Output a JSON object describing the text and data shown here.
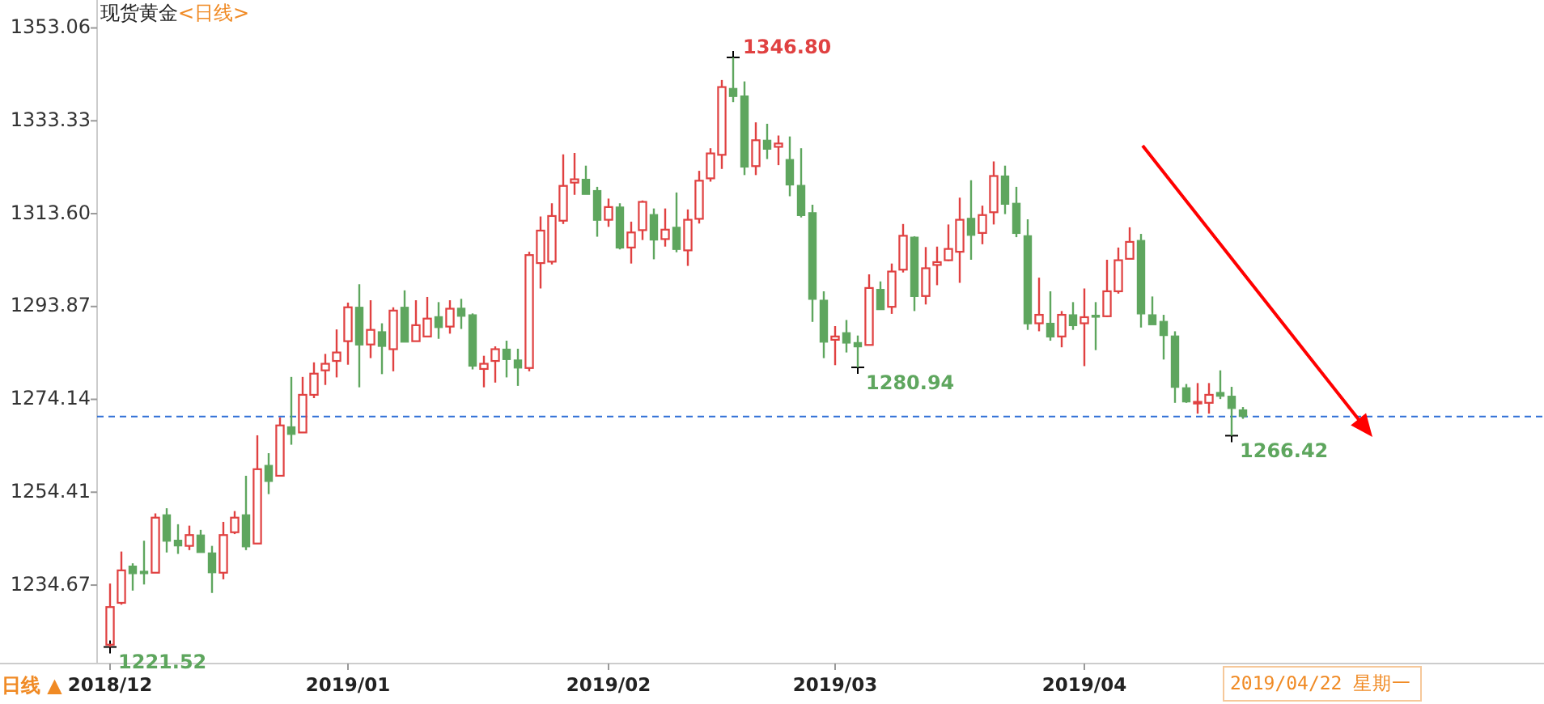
{
  "chart_data": {
    "type": "candlestick",
    "title": "现货黄金",
    "subtitle": "<日线>",
    "categories": [
      "2018/12",
      null,
      null,
      null,
      null,
      null,
      null,
      null,
      null,
      null,
      null,
      null,
      null,
      null,
      null,
      null,
      null,
      null,
      null,
      null,
      null,
      "2019/01",
      null,
      null,
      null,
      null,
      null,
      null,
      null,
      null,
      null,
      null,
      null,
      null,
      null,
      null,
      null,
      null,
      null,
      null,
      null,
      null,
      null,
      null,
      "2019/02",
      null,
      null,
      null,
      null,
      null,
      null,
      null,
      null,
      null,
      null,
      null,
      null,
      null,
      null,
      null,
      null,
      null,
      null,
      null,
      "2019/03",
      null,
      null,
      null,
      null,
      null,
      null,
      null,
      null,
      null,
      null,
      null,
      null,
      null,
      null,
      null,
      null,
      null,
      null,
      null,
      null,
      null,
      "2019/04",
      null,
      null,
      null,
      null,
      null,
      null,
      null,
      null,
      null,
      null,
      null,
      null,
      null,
      null
    ],
    "ohlc": [
      [
        1222.0,
        1235.0,
        1221.52,
        1230.0
      ],
      [
        1230.9,
        1241.8,
        1230.5,
        1237.8
      ],
      [
        1238.7,
        1239.3,
        1233.5,
        1237.1
      ],
      [
        1237.6,
        1244.1,
        1234.8,
        1237.1
      ],
      [
        1237.3,
        1249.9,
        1237.3,
        1249.0
      ],
      [
        1249.6,
        1251.0,
        1241.6,
        1244.0
      ],
      [
        1244.2,
        1247.6,
        1241.3,
        1243.0
      ],
      [
        1243.0,
        1247.3,
        1242.1,
        1245.3
      ],
      [
        1245.3,
        1246.4,
        1241.6,
        1241.6
      ],
      [
        1241.5,
        1243.0,
        1233.0,
        1237.3
      ],
      [
        1237.3,
        1248.1,
        1235.9,
        1245.3
      ],
      [
        1245.9,
        1250.4,
        1245.5,
        1249.0
      ],
      [
        1249.6,
        1257.9,
        1242.1,
        1242.8
      ],
      [
        1243.5,
        1266.5,
        1243.5,
        1259.3
      ],
      [
        1260.1,
        1262.7,
        1254.0,
        1256.7
      ],
      [
        1257.9,
        1270.3,
        1257.9,
        1268.6
      ],
      [
        1268.3,
        1278.9,
        1264.5,
        1266.7
      ],
      [
        1267.1,
        1278.9,
        1267.1,
        1275.1
      ],
      [
        1275.1,
        1282.0,
        1274.4,
        1279.6
      ],
      [
        1280.3,
        1283.8,
        1277.2,
        1281.7
      ],
      [
        1282.3,
        1289.0,
        1278.8,
        1284.1
      ],
      [
        1286.5,
        1294.7,
        1281.5,
        1293.7
      ],
      [
        1293.7,
        1298.6,
        1276.7,
        1285.7
      ],
      [
        1285.8,
        1295.2,
        1282.9,
        1288.9
      ],
      [
        1288.5,
        1290.3,
        1279.5,
        1285.4
      ],
      [
        1284.8,
        1293.7,
        1280.1,
        1293.0
      ],
      [
        1293.7,
        1297.3,
        1286.3,
        1286.3
      ],
      [
        1286.5,
        1295.2,
        1286.5,
        1289.9
      ],
      [
        1287.5,
        1295.9,
        1287.5,
        1291.3
      ],
      [
        1291.7,
        1294.8,
        1287.0,
        1289.4
      ],
      [
        1289.6,
        1295.2,
        1288.1,
        1293.4
      ],
      [
        1293.5,
        1295.5,
        1289.1,
        1291.8
      ],
      [
        1292.1,
        1292.4,
        1280.5,
        1281.2
      ],
      [
        1280.6,
        1283.4,
        1276.7,
        1281.7
      ],
      [
        1282.3,
        1285.4,
        1277.7,
        1284.8
      ],
      [
        1284.8,
        1286.6,
        1278.8,
        1282.6
      ],
      [
        1282.5,
        1284.9,
        1277.0,
        1280.8
      ],
      [
        1280.8,
        1305.5,
        1280.1,
        1304.8
      ],
      [
        1303.1,
        1313.0,
        1297.7,
        1310.0
      ],
      [
        1303.4,
        1315.8,
        1302.8,
        1313.1
      ],
      [
        1312.1,
        1326.2,
        1311.4,
        1319.5
      ],
      [
        1320.2,
        1326.5,
        1317.6,
        1320.9
      ],
      [
        1320.9,
        1323.8,
        1317.7,
        1317.7
      ],
      [
        1318.5,
        1319.3,
        1308.7,
        1312.2
      ],
      [
        1312.3,
        1316.8,
        1310.8,
        1315.0
      ],
      [
        1315.0,
        1315.8,
        1306.0,
        1306.3
      ],
      [
        1306.4,
        1311.9,
        1303.0,
        1309.6
      ],
      [
        1310.1,
        1316.4,
        1308.0,
        1316.1
      ],
      [
        1313.4,
        1314.7,
        1303.9,
        1308.0
      ],
      [
        1308.2,
        1314.7,
        1306.6,
        1310.2
      ],
      [
        1310.7,
        1318.1,
        1305.4,
        1306.0
      ],
      [
        1305.8,
        1314.5,
        1302.5,
        1312.3
      ],
      [
        1312.5,
        1322.7,
        1311.5,
        1320.6
      ],
      [
        1321.1,
        1327.5,
        1320.4,
        1326.4
      ],
      [
        1326.1,
        1342.0,
        1323.1,
        1340.5
      ],
      [
        1340.2,
        1346.8,
        1337.3,
        1338.5
      ],
      [
        1338.6,
        1341.7,
        1321.8,
        1323.5
      ],
      [
        1323.7,
        1333.0,
        1321.8,
        1329.2
      ],
      [
        1329.2,
        1332.7,
        1325.2,
        1327.3
      ],
      [
        1327.8,
        1330.2,
        1323.9,
        1328.5
      ],
      [
        1325.1,
        1330.0,
        1317.3,
        1319.7
      ],
      [
        1319.6,
        1327.5,
        1312.8,
        1313.2
      ],
      [
        1313.8,
        1315.5,
        1290.6,
        1295.4
      ],
      [
        1295.2,
        1297.1,
        1282.9,
        1286.3
      ],
      [
        1286.8,
        1289.7,
        1281.4,
        1287.5
      ],
      [
        1288.3,
        1291.0,
        1284.1,
        1286.1
      ],
      [
        1286.2,
        1287.7,
        1280.94,
        1285.3
      ],
      [
        1285.7,
        1300.7,
        1285.7,
        1297.8
      ],
      [
        1297.5,
        1299.2,
        1293.2,
        1293.2
      ],
      [
        1293.8,
        1303.0,
        1292.3,
        1301.3
      ],
      [
        1301.7,
        1311.4,
        1301.1,
        1308.9
      ],
      [
        1308.6,
        1308.8,
        1292.9,
        1296.0
      ],
      [
        1296.1,
        1306.5,
        1294.3,
        1302.0
      ],
      [
        1302.7,
        1306.6,
        1298.4,
        1303.3
      ],
      [
        1303.7,
        1311.3,
        1303.5,
        1306.1
      ],
      [
        1305.5,
        1317.0,
        1298.9,
        1312.3
      ],
      [
        1312.6,
        1320.7,
        1303.8,
        1309.0
      ],
      [
        1309.5,
        1315.3,
        1307.1,
        1313.3
      ],
      [
        1313.9,
        1324.7,
        1311.3,
        1321.6
      ],
      [
        1321.6,
        1323.8,
        1313.5,
        1315.6
      ],
      [
        1315.8,
        1319.3,
        1308.6,
        1309.4
      ],
      [
        1308.9,
        1312.4,
        1288.9,
        1290.2
      ],
      [
        1290.3,
        1300.0,
        1288.6,
        1292.1
      ],
      [
        1290.3,
        1297.1,
        1286.6,
        1287.4
      ],
      [
        1287.5,
        1292.9,
        1285.2,
        1292.1
      ],
      [
        1292.1,
        1294.8,
        1288.9,
        1289.8
      ],
      [
        1290.3,
        1297.7,
        1281.2,
        1291.6
      ],
      [
        1292.0,
        1294.8,
        1284.6,
        1291.6
      ],
      [
        1291.8,
        1303.8,
        1291.6,
        1297.1
      ],
      [
        1297.1,
        1306.4,
        1296.6,
        1303.7
      ],
      [
        1304.0,
        1310.7,
        1304.0,
        1307.6
      ],
      [
        1307.9,
        1309.3,
        1289.4,
        1292.3
      ],
      [
        1292.1,
        1296.0,
        1290.0,
        1290.0
      ],
      [
        1290.7,
        1292.1,
        1282.6,
        1287.7
      ],
      [
        1287.6,
        1288.6,
        1273.4,
        1276.7
      ],
      [
        1276.6,
        1277.4,
        1273.4,
        1273.6
      ],
      [
        1273.3,
        1277.6,
        1271.1,
        1273.6
      ],
      [
        1273.4,
        1277.6,
        1271.1,
        1275.1
      ],
      [
        1275.6,
        1280.3,
        1274.2,
        1274.8
      ],
      [
        1274.8,
        1276.8,
        1266.42,
        1272.2
      ],
      [
        1271.9,
        1272.5,
        1270.0,
        1270.5
      ]
    ],
    "colors": [
      "#e04141",
      "#e04141",
      "#5ea65e",
      "#5ea65e",
      "#e04141",
      "#5ea65e",
      "#5ea65e",
      "#e04141",
      "#5ea65e",
      "#5ea65e",
      "#e04141",
      "#e04141",
      "#5ea65e",
      "#e04141",
      "#5ea65e",
      "#e04141",
      "#5ea65e",
      "#e04141",
      "#e04141",
      "#e04141",
      "#e04141",
      "#e04141",
      "#5ea65e",
      "#e04141",
      "#5ea65e",
      "#e04141",
      "#5ea65e",
      "#e04141",
      "#e04141",
      "#5ea65e",
      "#e04141",
      "#5ea65e",
      "#5ea65e",
      "#e04141",
      "#e04141",
      "#5ea65e",
      "#5ea65e",
      "#e04141",
      "#e04141",
      "#e04141",
      "#e04141",
      "#e04141",
      "#5ea65e",
      "#5ea65e",
      "#e04141",
      "#5ea65e",
      "#e04141",
      "#e04141",
      "#5ea65e",
      "#e04141",
      "#5ea65e",
      "#e04141",
      "#e04141",
      "#e04141",
      "#e04141",
      "#5ea65e",
      "#5ea65e",
      "#e04141",
      "#5ea65e",
      "#e04141",
      "#5ea65e",
      "#5ea65e",
      "#5ea65e",
      "#5ea65e",
      "#e04141",
      "#5ea65e",
      "#5ea65e",
      "#e04141",
      "#5ea65e",
      "#e04141",
      "#e04141",
      "#5ea65e",
      "#e04141",
      "#e04141",
      "#e04141",
      "#e04141",
      "#5ea65e",
      "#e04141",
      "#e04141",
      "#5ea65e",
      "#5ea65e",
      "#5ea65e",
      "#e04141",
      "#5ea65e",
      "#e04141",
      "#5ea65e",
      "#e04141",
      "#5ea65e",
      "#e04141",
      "#e04141",
      "#e04141",
      "#5ea65e",
      "#5ea65e",
      "#5ea65e",
      "#5ea65e",
      "#5ea65e",
      "#e04141",
      "#e04141",
      "#5ea65e",
      "#5ea65e",
      "#5ea65e"
    ],
    "ylim": [
      1218,
      1359
    ],
    "yticks": [
      {
        "value": 1234.67,
        "label": "1234.67"
      },
      {
        "value": 1254.41,
        "label": "1254.41"
      },
      {
        "value": 1274.14,
        "label": "1274.14"
      },
      {
        "value": 1293.87,
        "label": "1293.87"
      },
      {
        "value": 1313.6,
        "label": "1313.60"
      },
      {
        "value": 1333.33,
        "label": "1333.33"
      },
      {
        "value": 1353.06,
        "label": "1353.06"
      }
    ],
    "ref_lines": [
      {
        "axis": "y",
        "value": 1270.5,
        "color": "#2f6fd6",
        "line_style": "dashed"
      }
    ],
    "annotations": [
      "1346.80",
      "1280.94",
      "1266.42",
      "1221.52",
      "日线 ▲",
      "2019/04/22 星期一"
    ]
  }
}
